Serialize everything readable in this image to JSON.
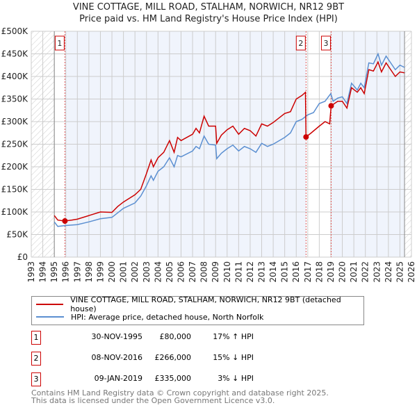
{
  "chart_data": {
    "type": "line",
    "title": "VINE COTTAGE, MILL ROAD, STALHAM, NORWICH, NR12 9BT",
    "subtitle": "Price paid vs. HM Land Registry's House Price Index (HPI)",
    "xlim": [
      1993,
      2026
    ],
    "ylim": [
      0,
      500000
    ],
    "x_ticks": [
      "1993",
      "1994",
      "1995",
      "1996",
      "1997",
      "1998",
      "1999",
      "2000",
      "2001",
      "2002",
      "2003",
      "2004",
      "2005",
      "2006",
      "2007",
      "2008",
      "2009",
      "2010",
      "2011",
      "2012",
      "2013",
      "2014",
      "2015",
      "2016",
      "2017",
      "2018",
      "2019",
      "2020",
      "2021",
      "2022",
      "2023",
      "2024",
      "2025",
      "2026"
    ],
    "y_ticks": [
      {
        "v": 0,
        "label": "£0"
      },
      {
        "v": 50000,
        "label": "£50K"
      },
      {
        "v": 100000,
        "label": "£100K"
      },
      {
        "v": 150000,
        "label": "£150K"
      },
      {
        "v": 200000,
        "label": "£200K"
      },
      {
        "v": 250000,
        "label": "£250K"
      },
      {
        "v": 300000,
        "label": "£300K"
      },
      {
        "v": 350000,
        "label": "£350K"
      },
      {
        "v": 400000,
        "label": "£400K"
      },
      {
        "v": 450000,
        "label": "£450K"
      },
      {
        "v": 500000,
        "label": "£500K"
      }
    ],
    "series": [
      {
        "name": "VINE COTTAGE, MILL ROAD, STALHAM, NORWICH, NR12 9BT (detached house)",
        "color": "#cc0000",
        "x": [
          1995,
          1995.3,
          1995.9,
          1996.5,
          1997,
          1998,
          1999,
          2000,
          2000.5,
          2001,
          2002,
          2002.5,
          2003,
          2003.4,
          2003.6,
          2004,
          2004.5,
          2005,
          2005.4,
          2005.7,
          2006,
          2007,
          2007.3,
          2007.6,
          2008,
          2008.4,
          2009,
          2009.1,
          2009.5,
          2010,
          2010.5,
          2011,
          2011.5,
          2012,
          2012.5,
          2013,
          2013.5,
          2014,
          2015,
          2015.5,
          2016,
          2016.5,
          2016.8,
          2016.85,
          2017.3,
          2018,
          2018.5,
          2018.9,
          2019.03,
          2019.6,
          2020,
          2020.4,
          2020.8,
          2021.3,
          2021.6,
          2021.9,
          2022.3,
          2022.7,
          2023.1,
          2023.4,
          2023.8,
          2024.2,
          2024.6,
          2025,
          2025.4
        ],
        "y": [
          92000,
          82000,
          80000,
          82000,
          84000,
          92000,
          100000,
          99000,
          112000,
          122000,
          138000,
          150000,
          185000,
          215000,
          200000,
          220000,
          232000,
          258000,
          232000,
          265000,
          258000,
          272000,
          285000,
          275000,
          312000,
          290000,
          290000,
          252000,
          270000,
          282000,
          290000,
          272000,
          285000,
          280000,
          268000,
          295000,
          290000,
          298000,
          318000,
          322000,
          350000,
          358000,
          365000,
          266000,
          275000,
          290000,
          300000,
          295000,
          335000,
          345000,
          345000,
          330000,
          375000,
          365000,
          375000,
          362000,
          415000,
          412000,
          432000,
          410000,
          430000,
          415000,
          400000,
          410000,
          408000
        ]
      },
      {
        "name": "HPI: Average price, detached house, North Norfolk",
        "color": "#5b8fd1",
        "x": [
          1995,
          1995.3,
          1996,
          1997,
          1998,
          1999,
          2000,
          2000.5,
          2001,
          2002,
          2002.5,
          2003,
          2003.4,
          2003.6,
          2004,
          2004.5,
          2005,
          2005.4,
          2005.7,
          2006,
          2007,
          2007.3,
          2007.6,
          2008,
          2008.4,
          2009,
          2009.1,
          2009.5,
          2010,
          2010.5,
          2011,
          2011.5,
          2012,
          2012.5,
          2013,
          2013.5,
          2014,
          2015,
          2015.5,
          2016,
          2016.5,
          2017,
          2017.5,
          2018,
          2018.5,
          2019,
          2019.2,
          2019.6,
          2020,
          2020.4,
          2020.8,
          2021.3,
          2021.6,
          2021.9,
          2022.3,
          2022.7,
          2023.1,
          2023.4,
          2023.8,
          2024.2,
          2024.6,
          2025,
          2025.4
        ],
        "y": [
          78000,
          68000,
          70000,
          72000,
          78000,
          85000,
          88000,
          98000,
          108000,
          120000,
          135000,
          158000,
          180000,
          170000,
          190000,
          200000,
          220000,
          200000,
          225000,
          222000,
          235000,
          245000,
          240000,
          268000,
          250000,
          248000,
          218000,
          230000,
          240000,
          248000,
          235000,
          245000,
          240000,
          232000,
          252000,
          245000,
          250000,
          265000,
          275000,
          300000,
          305000,
          315000,
          320000,
          340000,
          345000,
          362000,
          345000,
          352000,
          355000,
          340000,
          385000,
          370000,
          385000,
          375000,
          430000,
          428000,
          450000,
          425000,
          445000,
          430000,
          415000,
          425000,
          420000
        ]
      }
    ],
    "sales": [
      {
        "n": "1",
        "x": 1995.92,
        "price": 80000,
        "date": "30-NOV-1995",
        "price_label": "£80,000",
        "hpi": "17% ↑ HPI"
      },
      {
        "n": "2",
        "x": 2016.85,
        "price": 266000,
        "date": "08-NOV-2016",
        "price_label": "£266,000",
        "hpi": "15% ↓ HPI"
      },
      {
        "n": "3",
        "x": 2019.03,
        "price": 335000,
        "date": "09-JAN-2019",
        "price_label": "£335,000",
        "hpi": "3% ↓ HPI"
      }
    ],
    "hatched_ranges": [
      [
        1993,
        1995
      ],
      [
        2025.4,
        2026
      ]
    ]
  },
  "legend": {
    "property": "VINE COTTAGE, MILL ROAD, STALHAM, NORWICH, NR12 9BT (detached house)",
    "hpi": "HPI: Average price, detached house, North Norfolk"
  },
  "footer": {
    "line1": "Contains HM Land Registry data © Crown copyright and database right 2025.",
    "line2": "This data is licensed under the Open Government Licence v3.0."
  }
}
